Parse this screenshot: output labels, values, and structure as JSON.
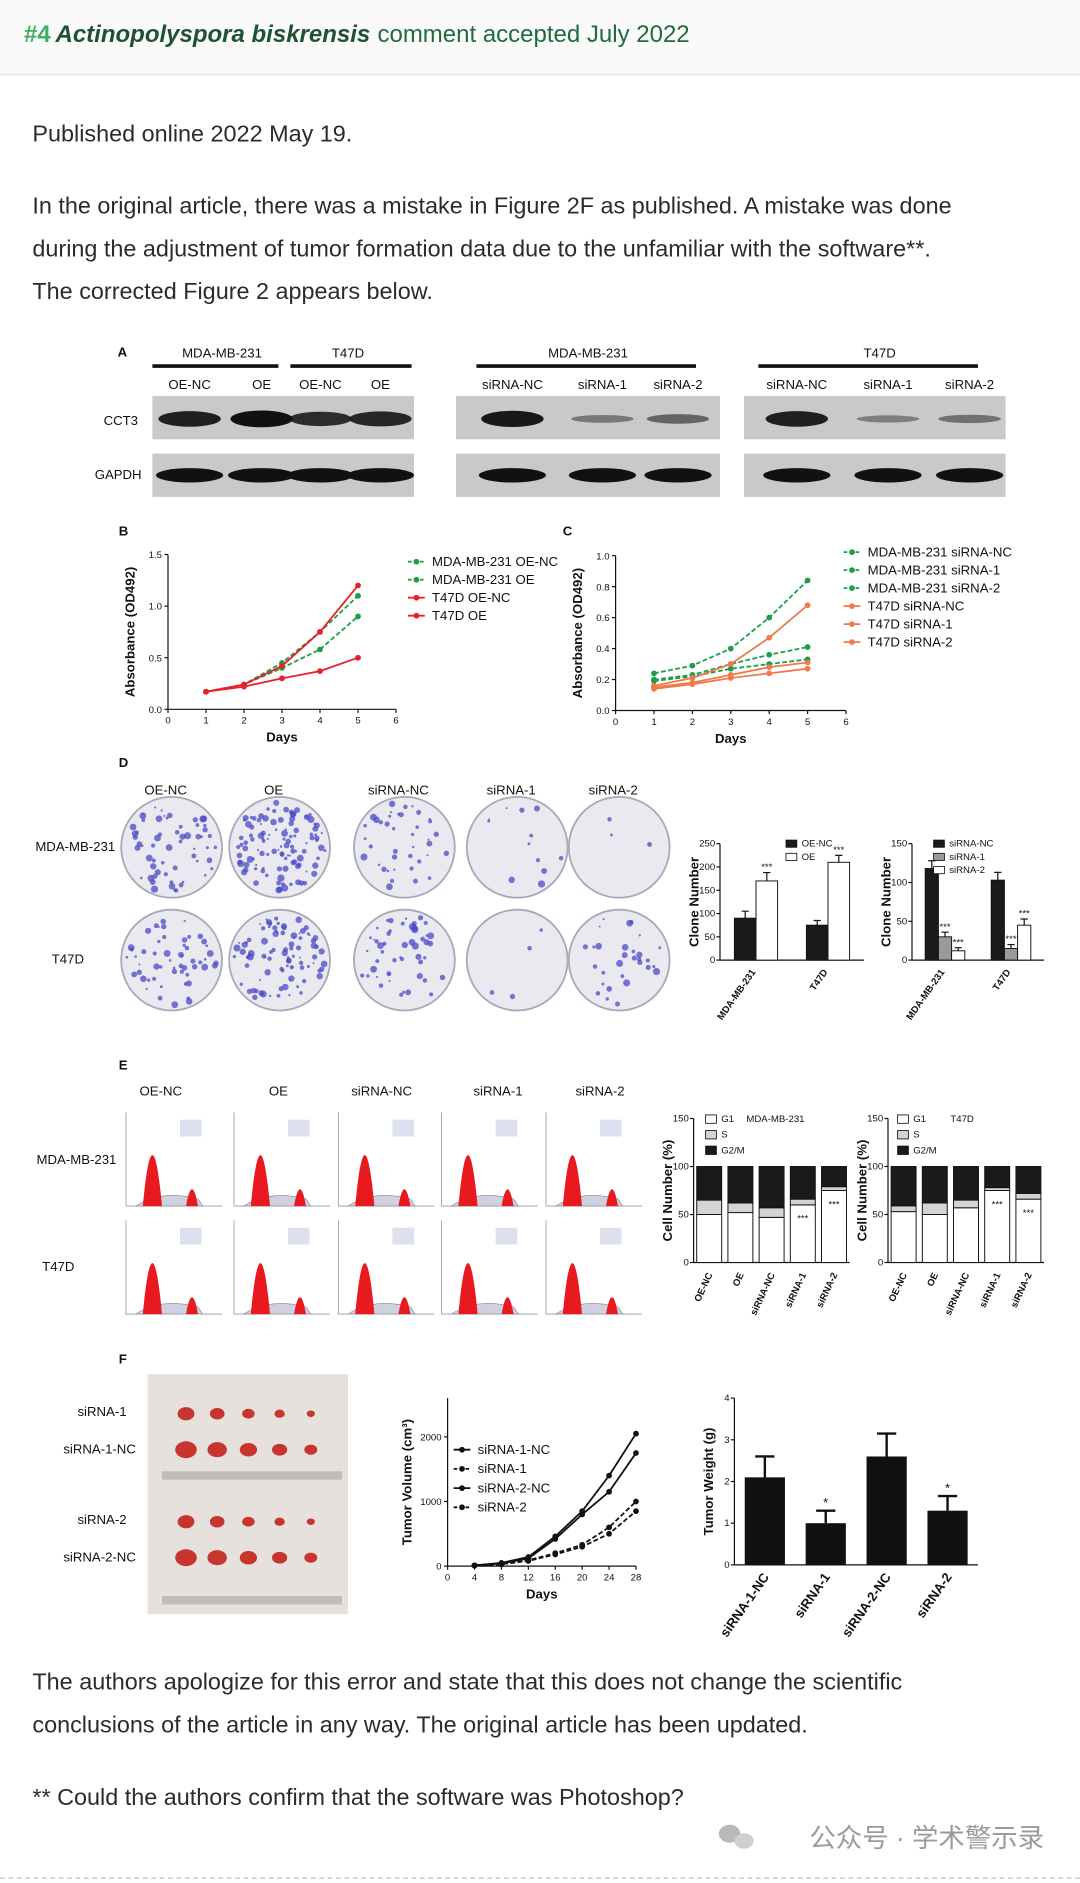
{
  "header": {
    "number": "#4",
    "species": "Actinopolyspora biskrensis",
    "status": "comment accepted July 2022"
  },
  "published": "Published online 2022 May 19.",
  "intro": [
    "In the original article, there was a mistake in Figure 2F as published. A mistake was done",
    "during the adjustment of tumor formation data due to the unfamiliar with the software**.",
    "The corrected Figure 2 appears below."
  ],
  "figure": {
    "A": {
      "letter": "A",
      "groups": [
        {
          "name": "MDA-MB-231",
          "lanes": [
            "OE-NC",
            "OE"
          ]
        },
        {
          "name": "T47D",
          "lanes": [
            "OE-NC",
            "OE"
          ]
        },
        {
          "name": "MDA-MB-231",
          "lanes": [
            "siRNA-NC",
            "siRNA-1",
            "siRNA-2"
          ]
        },
        {
          "name": "T47D",
          "lanes": [
            "siRNA-NC",
            "siRNA-1",
            "siRNA-2"
          ]
        }
      ],
      "rows": [
        "CCT3",
        "GAPDH"
      ]
    },
    "B": {
      "letter": "B",
      "xlabel": "Days",
      "ylabel": "Absorbance (OD492)",
      "xlim": [
        0,
        6
      ],
      "xticks": [
        0,
        1,
        2,
        3,
        4,
        5,
        6
      ],
      "ylim": [
        0,
        1.5
      ],
      "yticks": [
        {
          "value": 0,
          "label": "0.0"
        },
        {
          "value": 0.5,
          "label": "0.5"
        },
        {
          "value": 1,
          "label": "1.0"
        },
        {
          "value": 1.5,
          "label": "1.5"
        }
      ],
      "x": [
        1,
        2,
        3,
        4,
        5
      ],
      "series": [
        {
          "name": "MDA-MB-231 OE-NC",
          "color": "#1e9e4a",
          "dash": true,
          "values": [
            0.17,
            0.24,
            0.4,
            0.58,
            0.9
          ]
        },
        {
          "name": "MDA-MB-231 OE",
          "color": "#1e9e4a",
          "dash": true,
          "values": [
            0.17,
            0.24,
            0.45,
            0.75,
            1.1
          ]
        },
        {
          "name": "T47D OE-NC",
          "color": "#e8202a",
          "dash": false,
          "values": [
            0.17,
            0.22,
            0.3,
            0.37,
            0.5
          ]
        },
        {
          "name": "T47D OE",
          "color": "#e8202a",
          "dash": false,
          "values": [
            0.17,
            0.24,
            0.42,
            0.75,
            1.2
          ]
        }
      ]
    },
    "C": {
      "letter": "C",
      "xlabel": "Days",
      "ylabel": "Absorbance (OD492)",
      "xlim": [
        0,
        6
      ],
      "xticks": [
        0,
        1,
        2,
        3,
        4,
        5,
        6
      ],
      "ylim": [
        0,
        1
      ],
      "yticks": [
        {
          "value": 0,
          "label": "0.0"
        },
        {
          "value": 0.2,
          "label": "0.2"
        },
        {
          "value": 0.4,
          "label": "0.4"
        },
        {
          "value": 0.6,
          "label": "0.6"
        },
        {
          "value": 0.8,
          "label": "0.8"
        },
        {
          "value": 1,
          "label": "1.0"
        }
      ],
      "x": [
        1,
        2,
        3,
        4,
        5
      ],
      "series": [
        {
          "name": "MDA-MB-231 siRNA-NC",
          "color": "#1e9e4a",
          "dash": true,
          "values": [
            0.24,
            0.29,
            0.4,
            0.6,
            0.84
          ]
        },
        {
          "name": "MDA-MB-231 siRNA-1",
          "color": "#1e9e4a",
          "dash": true,
          "values": [
            0.2,
            0.23,
            0.3,
            0.36,
            0.41
          ]
        },
        {
          "name": "MDA-MB-231 siRNA-2",
          "color": "#1e9e4a",
          "dash": true,
          "values": [
            0.19,
            0.22,
            0.27,
            0.3,
            0.33
          ]
        },
        {
          "name": "T47D siRNA-NC",
          "color": "#f07a4a",
          "dash": false,
          "values": [
            0.16,
            0.21,
            0.3,
            0.47,
            0.68
          ]
        },
        {
          "name": "T47D siRNA-1",
          "color": "#f07a4a",
          "dash": false,
          "values": [
            0.14,
            0.17,
            0.21,
            0.24,
            0.27
          ]
        },
        {
          "name": "T47D siRNA-2",
          "color": "#f07a4a",
          "dash": false,
          "values": [
            0.15,
            0.18,
            0.23,
            0.28,
            0.31
          ]
        }
      ]
    },
    "D": {
      "letter": "D",
      "columns": [
        "OE-NC",
        "OE",
        "siRNA-NC",
        "siRNA-1",
        "siRNA-2"
      ],
      "rows": [
        "MDA-MB-231",
        "T47D"
      ],
      "charts": [
        {
          "ylabel": "Clone Number",
          "ylim": [
            0,
            250
          ],
          "yticks": [
            0,
            50,
            100,
            150,
            200,
            250
          ],
          "categories": [
            "MDA-MB-231",
            "T47D"
          ],
          "annotation": "***",
          "series": [
            {
              "name": "OE-NC",
              "color": "#1a1a1a",
              "values": [
                90,
                75
              ],
              "errors": [
                15,
                10
              ]
            },
            {
              "name": "OE",
              "color": "#ffffff",
              "values": [
                170,
                210
              ],
              "errors": [
                18,
                15
              ]
            }
          ]
        },
        {
          "ylabel": "Clone Number",
          "ylim": [
            0,
            150
          ],
          "yticks": [
            0,
            50,
            100,
            150
          ],
          "categories": [
            "MDA-MB-231",
            "T47D"
          ],
          "annotation": "***",
          "series": [
            {
              "name": "siRNA-NC",
              "color": "#1a1a1a",
              "values": [
                118,
                103
              ],
              "errors": [
                10,
                10
              ]
            },
            {
              "name": "siRNA-1",
              "color": "#9a9a9a",
              "values": [
                30,
                15
              ],
              "errors": [
                6,
                5
              ]
            },
            {
              "name": "siRNA-2",
              "color": "#ffffff",
              "values": [
                12,
                45
              ],
              "errors": [
                4,
                8
              ]
            }
          ]
        }
      ]
    },
    "E": {
      "letter": "E",
      "columns": [
        "OE-NC",
        "OE",
        "siRNA-NC",
        "siRNA-1",
        "siRNA-2"
      ],
      "rows": [
        "MDA-MB-231",
        "T47D"
      ],
      "charts": [
        {
          "title": "MDA-MB-231",
          "ylabel": "Cell Number (%)",
          "ylim": [
            0,
            150
          ],
          "yticks": [
            0,
            50,
            100,
            150
          ],
          "categories": [
            "OE-NC",
            "OE",
            "siRNA-NC",
            "siRNA-1",
            "siRNA-2"
          ],
          "annotation": "***",
          "series": [
            {
              "name": "G1",
              "color": "#ffffff",
              "values": [
                50,
                52,
                47,
                60,
                75
              ]
            },
            {
              "name": "S",
              "color": "#d4d4d4",
              "values": [
                15,
                10,
                10,
                6,
                4
              ]
            },
            {
              "name": "G2/M",
              "color": "#1a1a1a",
              "values": [
                35,
                38,
                43,
                34,
                21
              ]
            }
          ]
        },
        {
          "title": "T47D",
          "ylabel": "Cell Number (%)",
          "ylim": [
            0,
            150
          ],
          "yticks": [
            0,
            50,
            100,
            150
          ],
          "categories": [
            "OE-NC",
            "OE",
            "siRNA-NC",
            "siRNA-1",
            "siRNA-2"
          ],
          "annotation": "***",
          "series": [
            {
              "name": "G1",
              "color": "#ffffff",
              "values": [
                53,
                50,
                57,
                75,
                66
              ]
            },
            {
              "name": "S",
              "color": "#d4d4d4",
              "values": [
                6,
                12,
                8,
                3,
                6
              ]
            },
            {
              "name": "G2/M",
              "color": "#1a1a1a",
              "values": [
                41,
                38,
                35,
                22,
                28
              ]
            }
          ]
        }
      ]
    },
    "F": {
      "letter": "F",
      "photo_labels": [
        "siRNA-1",
        "siRNA-1-NC",
        "siRNA-2",
        "siRNA-2-NC"
      ],
      "volume": {
        "xlabel": "Days",
        "ylabel": "Tumor Volume (cm³)",
        "xlim": [
          0,
          28
        ],
        "xticks": [
          0,
          4,
          8,
          12,
          16,
          20,
          24,
          28
        ],
        "ylim": [
          0,
          2600
        ],
        "yticks": [
          0,
          1000,
          2000
        ],
        "x": [
          4,
          8,
          12,
          16,
          20,
          24,
          28
        ],
        "series": [
          {
            "name": "siRNA-1-NC",
            "color": "#111111",
            "dash": false,
            "values": [
              10,
              40,
              120,
              420,
              800,
              1150,
              1750
            ]
          },
          {
            "name": "siRNA-1",
            "color": "#111111",
            "dash": true,
            "values": [
              10,
              30,
              80,
              180,
              300,
              500,
              850
            ]
          },
          {
            "name": "siRNA-2-NC",
            "color": "#111111",
            "dash": false,
            "values": [
              10,
              50,
              140,
              460,
              850,
              1400,
              2050
            ]
          },
          {
            "name": "siRNA-2",
            "color": "#111111",
            "dash": true,
            "values": [
              10,
              30,
              90,
              200,
              330,
              600,
              1000
            ]
          }
        ]
      },
      "weight": {
        "ylabel": "Tumor Weight (g)",
        "ylim": [
          0,
          4
        ],
        "yticks": [
          0,
          1,
          2,
          3,
          4
        ],
        "categories": [
          "siRNA-1-NC",
          "siRNA-1",
          "siRNA-2-NC",
          "siRNA-2"
        ],
        "values": [
          2.1,
          1.0,
          2.6,
          1.3
        ],
        "errors": [
          0.5,
          0.3,
          0.55,
          0.35
        ],
        "color": "#111111",
        "annotation": "*"
      }
    }
  },
  "closing": [
    "The authors apologize for this error and state that this does not change the scientific",
    "conclusions of the article in any way. The original article has been updated."
  ],
  "footnote": "** Could the authors confirm that the software was Photoshop?",
  "watermark": "公众号 · 学术警示录"
}
